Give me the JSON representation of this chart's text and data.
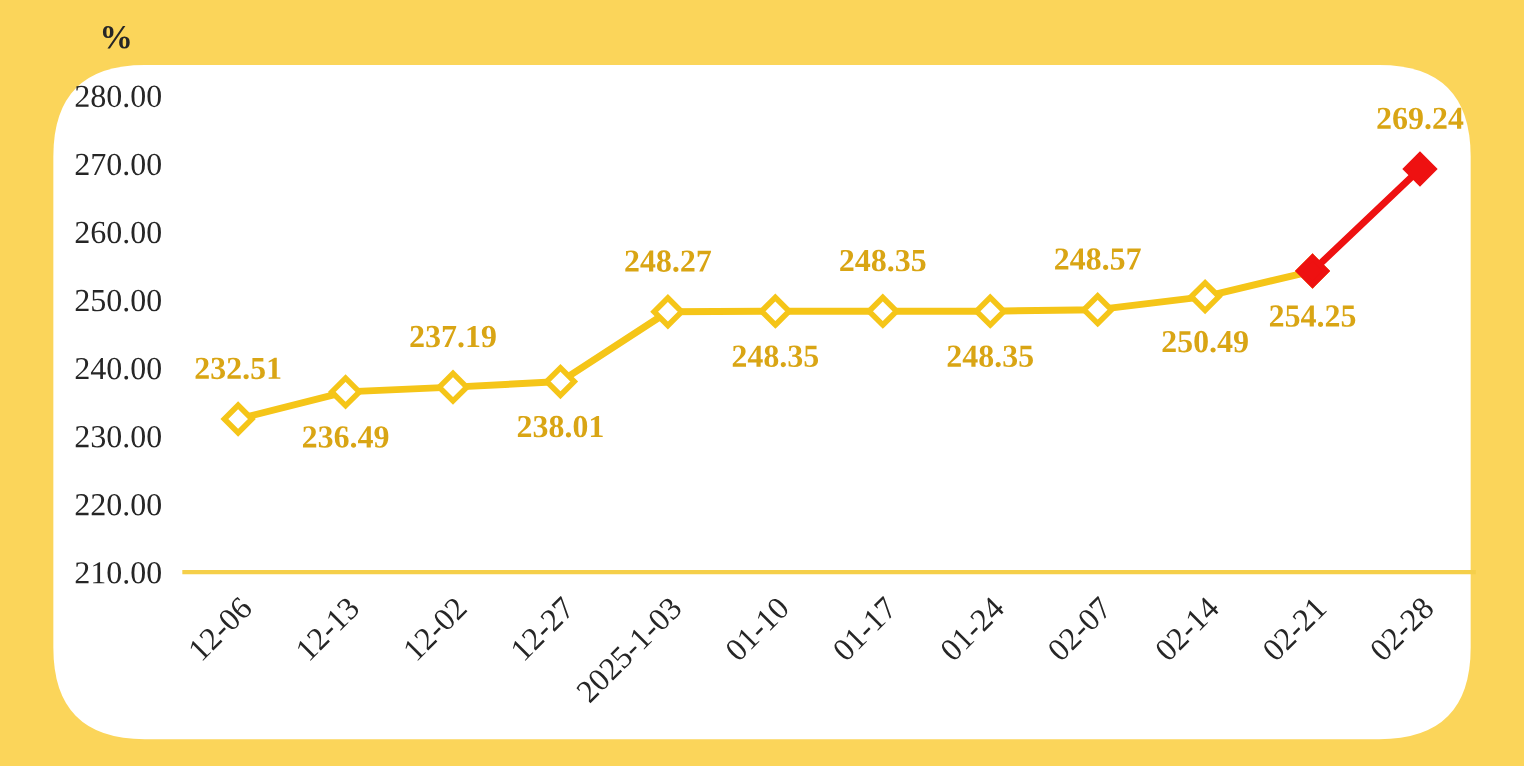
{
  "chart_data": {
    "type": "line",
    "ylabel": "%",
    "categories": [
      "12-06",
      "12-13",
      "12-02",
      "12-27",
      "2025-1-03",
      "01-10",
      "01-17",
      "01-24",
      "02-07",
      "02-14",
      "02-21",
      "02-28"
    ],
    "series": [
      {
        "color": "#f5c518",
        "values": [
          232.51,
          236.49,
          237.19,
          238.01,
          248.27,
          248.35,
          248.35,
          248.35,
          248.57,
          250.49,
          254.25,
          null
        ],
        "value_labels": [
          "232.51",
          "236.49",
          "237.19",
          "238.01",
          "248.27",
          "248.35",
          "248.35",
          "248.35",
          "248.57",
          "250.49",
          "254.25",
          null
        ]
      },
      {
        "color": "#ee1111",
        "values": [
          null,
          null,
          null,
          null,
          null,
          null,
          null,
          null,
          null,
          null,
          254.25,
          269.24
        ],
        "value_labels": [
          null,
          null,
          null,
          null,
          null,
          null,
          null,
          null,
          null,
          null,
          null,
          "269.24"
        ]
      }
    ],
    "ylim": [
      210,
      280
    ],
    "yticks": [
      {
        "value": 210,
        "label": "210.00"
      },
      {
        "value": 220,
        "label": "220.00"
      },
      {
        "value": 230,
        "label": "230.00"
      },
      {
        "value": 240,
        "label": "240.00"
      },
      {
        "value": 250,
        "label": "250.00"
      },
      {
        "value": 260,
        "label": "260.00"
      },
      {
        "value": 270,
        "label": "270.00"
      },
      {
        "value": 280,
        "label": "280.00"
      }
    ],
    "marker": "diamond",
    "line_style": "solid",
    "grid": false,
    "legend": false
  }
}
